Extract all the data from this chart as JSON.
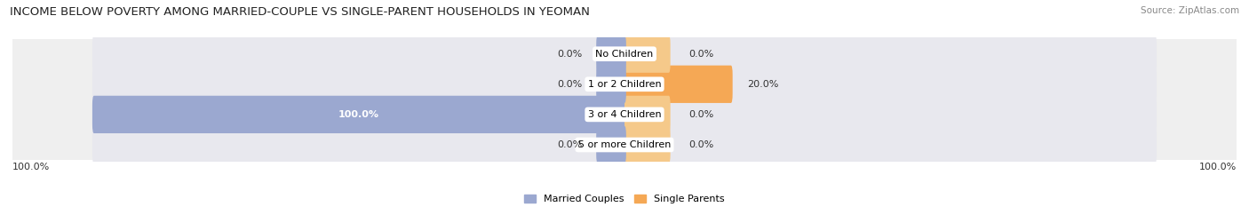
{
  "title": "INCOME BELOW POVERTY AMONG MARRIED-COUPLE VS SINGLE-PARENT HOUSEHOLDS IN YEOMAN",
  "source": "Source: ZipAtlas.com",
  "categories": [
    "No Children",
    "1 or 2 Children",
    "3 or 4 Children",
    "5 or more Children"
  ],
  "married_values": [
    0.0,
    0.0,
    100.0,
    0.0
  ],
  "single_values": [
    0.0,
    20.0,
    0.0,
    0.0
  ],
  "married_color": "#9BA8D0",
  "single_color": "#F5A855",
  "single_color_light": "#F5C98A",
  "bar_bg_color": "#E8E8EE",
  "row_bg_color": "#EFEFEF",
  "title_fontsize": 9.5,
  "source_fontsize": 7.5,
  "label_fontsize": 8,
  "cat_fontsize": 8,
  "axis_max": 100.0,
  "legend_labels": [
    "Married Couples",
    "Single Parents"
  ]
}
